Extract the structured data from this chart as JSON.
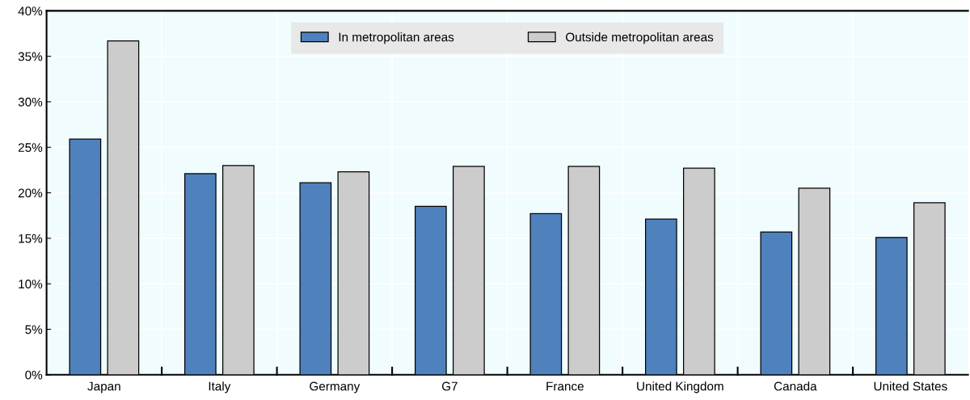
{
  "chart_data": {
    "type": "bar",
    "categories": [
      "Japan",
      "Italy",
      "Germany",
      "G7",
      "France",
      "United Kingdom",
      "Canada",
      "United States"
    ],
    "series": [
      {
        "name": "In metropolitan areas",
        "color": "#4f81bd",
        "values": [
          25.9,
          22.1,
          21.1,
          18.5,
          17.7,
          17.1,
          15.7,
          15.1
        ]
      },
      {
        "name": "Outside metropolitan areas",
        "color": "#cccccc",
        "values": [
          36.7,
          23.0,
          22.3,
          22.9,
          22.9,
          22.7,
          20.5,
          18.9
        ]
      }
    ],
    "ylim": [
      0,
      40
    ],
    "yticks": [
      {
        "value": 0,
        "label": "0%"
      },
      {
        "value": 5,
        "label": "5%"
      },
      {
        "value": 10,
        "label": "10%"
      },
      {
        "value": 15,
        "label": "15%"
      },
      {
        "value": 20,
        "label": "20%"
      },
      {
        "value": 25,
        "label": "25%"
      },
      {
        "value": 30,
        "label": "30%"
      },
      {
        "value": 35,
        "label": "35%"
      },
      {
        "value": 40,
        "label": "40%"
      }
    ],
    "grid": true,
    "legend": "top"
  }
}
